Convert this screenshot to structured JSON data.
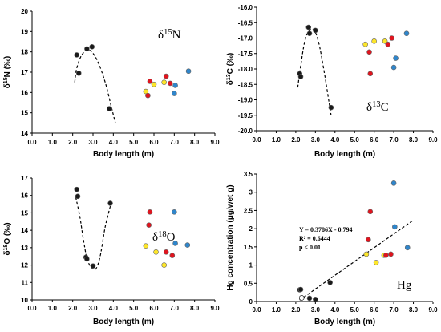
{
  "chart_data": [
    {
      "type": "scatter",
      "panel": "nitrogen",
      "label": {
        "base": "δ",
        "sup": "15",
        "rest": "N"
      },
      "ylabel": {
        "base": "δ",
        "sup": "15",
        "rest": "N (‰)"
      },
      "xlabel": "Body length (m)",
      "xlim": [
        0,
        9
      ],
      "ylim": [
        14,
        20
      ],
      "xticks": [
        "0.0",
        "1.0",
        "2.0",
        "3.0",
        "4.0",
        "5.0",
        "6.0",
        "7.0",
        "8.0",
        "9.0"
      ],
      "yticks": [
        "14",
        "15",
        "16",
        "17",
        "18",
        "19",
        "20"
      ],
      "grid": false,
      "curve": [
        [
          2.1,
          16.5
        ],
        [
          2.2,
          17.2
        ],
        [
          2.45,
          17.85
        ],
        [
          2.8,
          18.1
        ],
        [
          3.2,
          17.6
        ],
        [
          3.6,
          16.5
        ],
        [
          3.9,
          15.3
        ],
        [
          4.1,
          14.5
        ]
      ],
      "points": [
        {
          "x": 2.2,
          "y": 17.85,
          "color": "black"
        },
        {
          "x": 2.3,
          "y": 16.95,
          "color": "black"
        },
        {
          "x": 2.7,
          "y": 18.15,
          "color": "black"
        },
        {
          "x": 2.95,
          "y": 18.25,
          "color": "black"
        },
        {
          "x": 3.8,
          "y": 15.2,
          "color": "black"
        },
        {
          "x": 5.6,
          "y": 16.05,
          "color": "yellow"
        },
        {
          "x": 5.7,
          "y": 15.85,
          "color": "red"
        },
        {
          "x": 5.8,
          "y": 16.55,
          "color": "red"
        },
        {
          "x": 6.0,
          "y": 16.4,
          "color": "yellow"
        },
        {
          "x": 6.5,
          "y": 16.5,
          "color": "yellow"
        },
        {
          "x": 6.6,
          "y": 16.8,
          "color": "red"
        },
        {
          "x": 6.8,
          "y": 16.45,
          "color": "red"
        },
        {
          "x": 7.0,
          "y": 15.95,
          "color": "blue"
        },
        {
          "x": 7.05,
          "y": 16.35,
          "color": "blue"
        },
        {
          "x": 7.7,
          "y": 17.05,
          "color": "blue"
        }
      ]
    },
    {
      "type": "scatter",
      "panel": "carbon",
      "label": {
        "base": "δ",
        "sup": "13",
        "rest": "C"
      },
      "ylabel": {
        "base": "δ",
        "sup": "13",
        "rest": "C (‰)"
      },
      "xlabel": "Body length (m)",
      "xlim": [
        0,
        9
      ],
      "ylim": [
        -20,
        -16
      ],
      "xticks": [
        "0.0",
        "1.0",
        "2.0",
        "3.0",
        "4.0",
        "5.0",
        "6.0",
        "7.0",
        "8.0",
        "9.0"
      ],
      "yticks": [
        "-16.0",
        "-16.5",
        "-17.0",
        "-17.5",
        "-18.0",
        "-18.5",
        "-19.0",
        "-19.5",
        "-20.0"
      ],
      "grid": false,
      "curve": [
        [
          2.1,
          -18.6
        ],
        [
          2.25,
          -17.9
        ],
        [
          2.5,
          -17.0
        ],
        [
          2.85,
          -16.7
        ],
        [
          3.15,
          -17.1
        ],
        [
          3.45,
          -18.1
        ],
        [
          3.7,
          -19.1
        ],
        [
          3.8,
          -19.5
        ]
      ],
      "points": [
        {
          "x": 2.2,
          "y": -18.15,
          "color": "black"
        },
        {
          "x": 2.25,
          "y": -18.25,
          "color": "black"
        },
        {
          "x": 2.65,
          "y": -16.65,
          "color": "black"
        },
        {
          "x": 2.7,
          "y": -16.85,
          "color": "black"
        },
        {
          "x": 3.0,
          "y": -16.75,
          "color": "black"
        },
        {
          "x": 3.8,
          "y": -19.25,
          "color": "black"
        },
        {
          "x": 5.55,
          "y": -17.2,
          "color": "yellow"
        },
        {
          "x": 5.75,
          "y": -17.45,
          "color": "red"
        },
        {
          "x": 5.8,
          "y": -18.15,
          "color": "red"
        },
        {
          "x": 6.0,
          "y": -17.1,
          "color": "yellow"
        },
        {
          "x": 6.55,
          "y": -17.1,
          "color": "yellow"
        },
        {
          "x": 6.7,
          "y": -17.2,
          "color": "red"
        },
        {
          "x": 6.9,
          "y": -17.0,
          "color": "red"
        },
        {
          "x": 7.0,
          "y": -17.95,
          "color": "blue"
        },
        {
          "x": 7.1,
          "y": -17.65,
          "color": "blue"
        },
        {
          "x": 7.65,
          "y": -16.85,
          "color": "blue"
        }
      ]
    },
    {
      "type": "scatter",
      "panel": "oxygen",
      "label": {
        "base": "δ",
        "sup": "18",
        "rest": "O"
      },
      "ylabel": {
        "base": "δ",
        "sup": "18",
        "rest": "O (‰)"
      },
      "xlabel": "Body length (m)",
      "xlim": [
        0,
        9
      ],
      "ylim": [
        10,
        17
      ],
      "xticks": [
        "0.0",
        "1.0",
        "2.0",
        "3.0",
        "4.0",
        "5.0",
        "6.0",
        "7.0",
        "8.0",
        "9.0"
      ],
      "yticks": [
        "10",
        "11",
        "12",
        "13",
        "14",
        "15",
        "16",
        "17"
      ],
      "grid": false,
      "curve": [
        [
          2.15,
          15.9
        ],
        [
          2.35,
          14.8
        ],
        [
          2.55,
          13.3
        ],
        [
          2.75,
          12.2
        ],
        [
          3.1,
          11.75
        ],
        [
          3.35,
          12.5
        ],
        [
          3.6,
          14.2
        ],
        [
          3.9,
          15.6
        ]
      ],
      "points": [
        {
          "x": 2.2,
          "y": 16.35,
          "color": "black"
        },
        {
          "x": 2.25,
          "y": 15.95,
          "color": "black"
        },
        {
          "x": 2.65,
          "y": 12.45,
          "color": "black"
        },
        {
          "x": 2.7,
          "y": 12.35,
          "color": "black"
        },
        {
          "x": 3.0,
          "y": 11.95,
          "color": "black"
        },
        {
          "x": 3.85,
          "y": 15.55,
          "color": "black"
        },
        {
          "x": 5.6,
          "y": 13.1,
          "color": "yellow"
        },
        {
          "x": 5.75,
          "y": 14.3,
          "color": "red"
        },
        {
          "x": 5.8,
          "y": 15.05,
          "color": "red"
        },
        {
          "x": 6.1,
          "y": 12.75,
          "color": "yellow"
        },
        {
          "x": 6.5,
          "y": 12.0,
          "color": "yellow"
        },
        {
          "x": 6.6,
          "y": 12.75,
          "color": "red"
        },
        {
          "x": 6.9,
          "y": 12.55,
          "color": "red"
        },
        {
          "x": 7.0,
          "y": 15.05,
          "color": "blue"
        },
        {
          "x": 7.05,
          "y": 13.25,
          "color": "blue"
        },
        {
          "x": 7.65,
          "y": 13.15,
          "color": "blue"
        }
      ]
    },
    {
      "type": "scatter",
      "panel": "mercury",
      "label": {
        "base": "Hg",
        "sup": "",
        "rest": ""
      },
      "ylabel": {
        "base": "Hg concentration (μg/wet g)",
        "sup": "",
        "rest": ""
      },
      "xlabel": "Body length (m)",
      "xlim": [
        0,
        9
      ],
      "ylim": [
        0,
        3.5
      ],
      "xticks": [
        "0.0",
        "1.0",
        "2.0",
        "3.0",
        "4.0",
        "5.0",
        "6.0",
        "7.0",
        "8.0",
        "9.0"
      ],
      "yticks": [
        "0",
        "0.5",
        "1",
        "1.5",
        "2",
        "2.5",
        "3",
        "3.5"
      ],
      "grid": false,
      "regression": {
        "slope": 0.3786,
        "intercept": -0.794,
        "x_range": [
          2.2,
          8.0
        ]
      },
      "annotations": [
        "Y = 0.3786X - 0.794",
        "R² = 0.6444",
        "p <  0.01"
      ],
      "points": [
        {
          "x": 2.2,
          "y": 0.32,
          "color": "black"
        },
        {
          "x": 2.25,
          "y": 0.33,
          "color": "black"
        },
        {
          "x": 2.3,
          "y": 0.1,
          "color": "white"
        },
        {
          "x": 2.7,
          "y": 0.09,
          "color": "black"
        },
        {
          "x": 3.0,
          "y": 0.06,
          "color": "black"
        },
        {
          "x": 3.75,
          "y": 0.52,
          "color": "black"
        },
        {
          "x": 5.6,
          "y": 1.3,
          "color": "yellow"
        },
        {
          "x": 5.7,
          "y": 1.7,
          "color": "red"
        },
        {
          "x": 5.8,
          "y": 2.47,
          "color": "red"
        },
        {
          "x": 6.1,
          "y": 1.07,
          "color": "yellow"
        },
        {
          "x": 6.5,
          "y": 1.27,
          "color": "yellow"
        },
        {
          "x": 6.6,
          "y": 1.27,
          "color": "red"
        },
        {
          "x": 6.85,
          "y": 1.3,
          "color": "red"
        },
        {
          "x": 7.0,
          "y": 3.25,
          "color": "blue"
        },
        {
          "x": 7.05,
          "y": 2.05,
          "color": "blue"
        },
        {
          "x": 7.7,
          "y": 1.48,
          "color": "blue"
        }
      ]
    }
  ],
  "colors": {
    "black": "#1a1a1a",
    "red": "#e0141e",
    "yellow": "#fde62a",
    "blue": "#2f86cc",
    "white": "#ffffff",
    "stroke": "#666666"
  }
}
